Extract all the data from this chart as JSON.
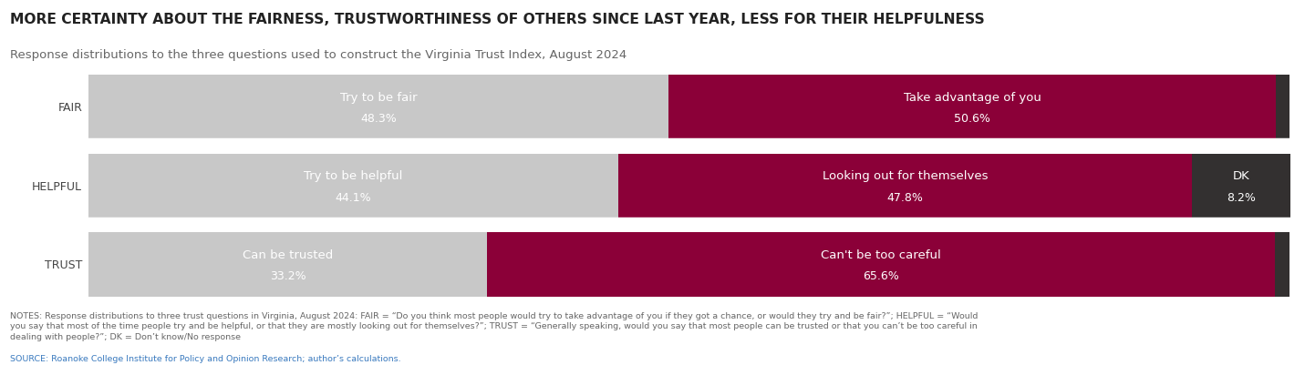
{
  "title": "MORE CERTAINTY ABOUT THE FAIRNESS, TRUSTWORTHINESS OF OTHERS SINCE LAST YEAR, LESS FOR THEIR HELPFULNESS",
  "subtitle": "Response distributions to the three questions used to construct the Virginia Trust Index, August 2024",
  "rows": [
    {
      "label": "FAIR",
      "segments": [
        {
          "label": "Try to be fair",
          "value": 48.3,
          "color": "#c8c8c8"
        },
        {
          "label": "Take advantage of you",
          "value": 50.6,
          "color": "#8b0038"
        },
        {
          "label": "",
          "value": 1.1,
          "color": "#333030"
        }
      ]
    },
    {
      "label": "HELPFUL",
      "segments": [
        {
          "label": "Try to be helpful",
          "value": 44.1,
          "color": "#c8c8c8"
        },
        {
          "label": "Looking out for themselves",
          "value": 47.8,
          "color": "#8b0038"
        },
        {
          "label": "DK",
          "value": 8.2,
          "color": "#333030"
        }
      ]
    },
    {
      "label": "TRUST",
      "segments": [
        {
          "label": "Can be trusted",
          "value": 33.2,
          "color": "#c8c8c8"
        },
        {
          "label": "Can't be too careful",
          "value": 65.6,
          "color": "#8b0038"
        },
        {
          "label": "",
          "value": 1.2,
          "color": "#333030"
        }
      ]
    }
  ],
  "notes_text": "NOTES: Response distributions to three trust questions in Virginia, August 2024: FAIR = “Do you think most people would try to take advantage of you if they got a chance, or would they try and be fair?”; HELPFUL = “Would\nyou say that most of the time people try and be helpful, or that they are mostly looking out for themselves?”; TRUST = “Generally speaking, would you say that most people can be trusted or that you can’t be too careful in\ndealing with people?”; DK = Don’t know/No response",
  "source_text": "SOURCE: Roanoke College Institute for Policy and Opinion Research; author’s calculations.",
  "background_color": "#ffffff",
  "title_color": "#222222",
  "subtitle_color": "#666666",
  "row_label_color": "#444444",
  "notes_color": "#666666",
  "source_color": "#3a7abf",
  "bar_total": 100
}
